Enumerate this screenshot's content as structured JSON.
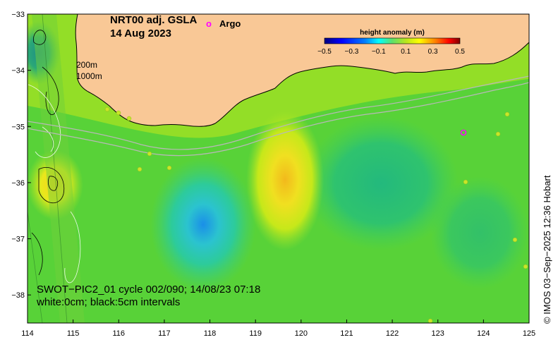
{
  "map": {
    "title_line1": "NRT00 adj. GSLA",
    "title_line2": "14 Aug 2023",
    "argo_symbol": "o",
    "argo_label": "Argo",
    "colorbar": {
      "title": "height anomaly (m)",
      "tick_labels": [
        "−0.5",
        "−0.3",
        "−0.1",
        "0.1",
        "0.3",
        "0.5"
      ],
      "tick_values": [
        -0.5,
        -0.3,
        -0.1,
        0.1,
        0.3,
        0.5
      ],
      "range": [
        -0.5,
        0.5
      ],
      "colors": [
        "#00007f",
        "#0000ff",
        "#007fff",
        "#00ffff",
        "#7fff7f",
        "#ffff00",
        "#ff7f00",
        "#ff0000",
        "#7f0000"
      ]
    },
    "isobath_labels": [
      "200m",
      "1000m"
    ],
    "swot_line1": "SWOT−PIC2_01 cycle 002/090; 14/08/23 07:18",
    "swot_line2": "white:0cm; black:5cm intervals",
    "credit": "© IMOS 03−Sep−2025 12:36 Hobart",
    "x_axis": {
      "range": [
        114,
        125
      ],
      "ticks": [
        114,
        115,
        116,
        117,
        118,
        119,
        120,
        121,
        122,
        123,
        124,
        125
      ],
      "tick_labels": [
        "114",
        "115",
        "116",
        "117",
        "118",
        "119",
        "120",
        "121",
        "122",
        "123",
        "124",
        "125"
      ]
    },
    "y_axis": {
      "range": [
        -38.5,
        -33
      ],
      "ticks": [
        -33,
        -34,
        -35,
        -36,
        -37,
        -38
      ],
      "tick_labels": [
        "−33",
        "−34",
        "−35",
        "−36",
        "−37",
        "−38"
      ]
    },
    "land_color": "#f9c896",
    "features": {
      "low_center": {
        "lon": 117.8,
        "lat": -36.8,
        "value": -0.12
      },
      "high_center": {
        "lon": 119.6,
        "lat": -35.8,
        "value": 0.22
      },
      "argo_float": {
        "lon": 123.6,
        "lat": -35.1
      }
    }
  }
}
